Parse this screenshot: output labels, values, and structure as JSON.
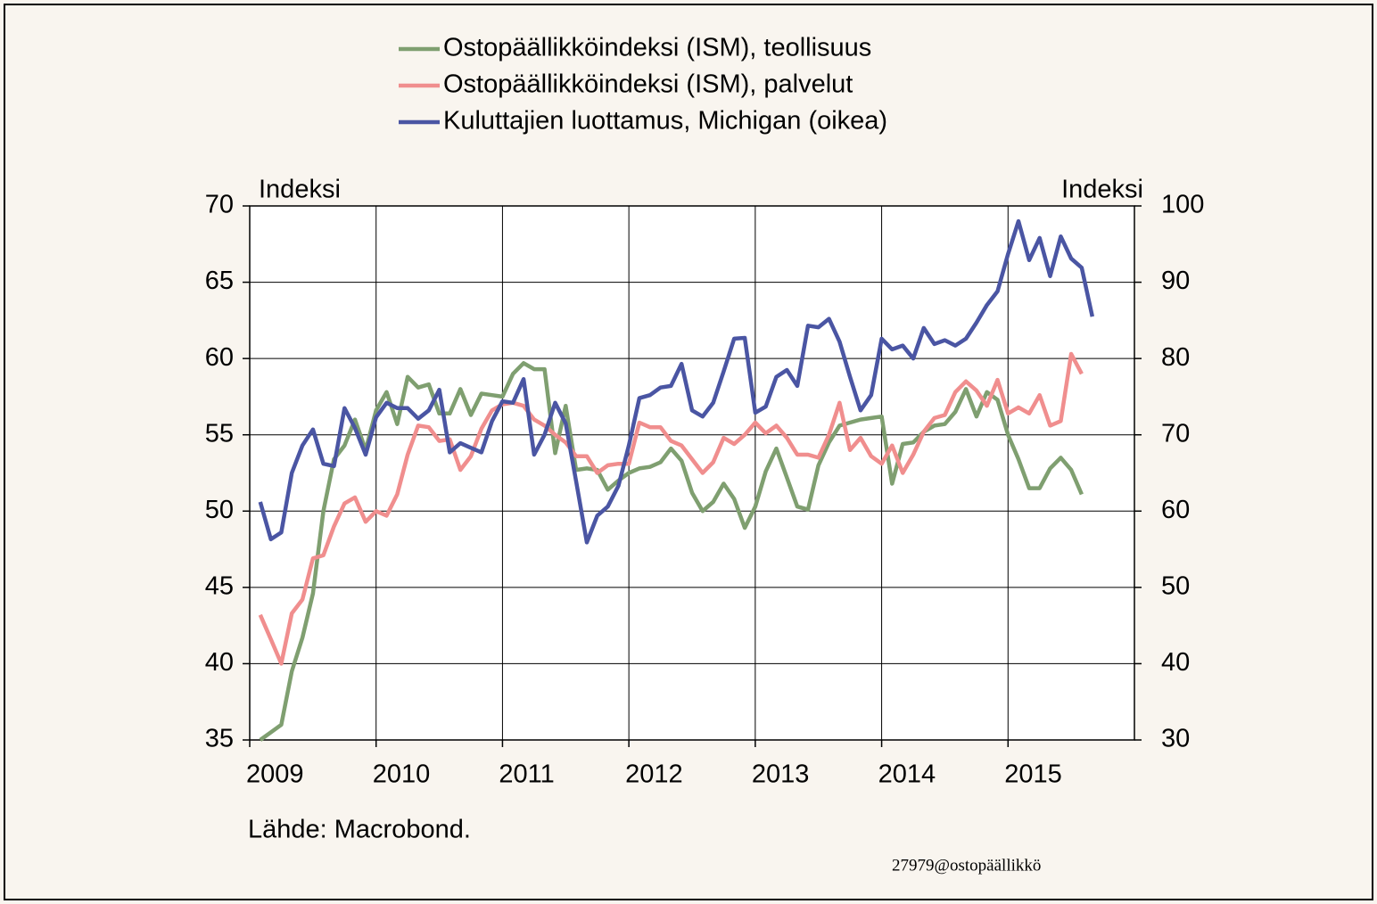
{
  "chart_data": {
    "type": "line",
    "y_label": "Indeksi",
    "y2_label": "Indeksi",
    "source": "Lähde: Macrobond.",
    "watermark": "27979@ostopäällikkö",
    "x": [
      2009.083,
      2009.167,
      2009.25,
      2009.333,
      2009.417,
      2009.5,
      2009.583,
      2009.667,
      2009.75,
      2009.833,
      2009.917,
      2010,
      2010.083,
      2010.167,
      2010.25,
      2010.333,
      2010.417,
      2010.5,
      2010.583,
      2010.667,
      2010.75,
      2010.833,
      2010.917,
      2011,
      2011.083,
      2011.167,
      2011.25,
      2011.333,
      2011.417,
      2011.5,
      2011.583,
      2011.667,
      2011.75,
      2011.833,
      2011.917,
      2012,
      2012.083,
      2012.167,
      2012.25,
      2012.333,
      2012.417,
      2012.5,
      2012.583,
      2012.667,
      2012.75,
      2012.833,
      2012.917,
      2013,
      2013.083,
      2013.167,
      2013.25,
      2013.333,
      2013.417,
      2013.5,
      2013.583,
      2013.667,
      2013.75,
      2013.833,
      2013.917,
      2014,
      2014.083,
      2014.167,
      2014.25,
      2014.333,
      2014.417,
      2014.5,
      2014.583,
      2014.667,
      2014.75,
      2014.833,
      2014.917,
      2015,
      2015.083,
      2015.167,
      2015.25,
      2015.333,
      2015.417,
      2015.5,
      2015.583,
      2015.667
    ],
    "series": [
      {
        "name": "Ostopäällikköindeksi (ISM), teollisuus",
        "color": "#7f9f70",
        "axis": "y",
        "values": [
          35,
          35.5,
          36,
          39.5,
          41.7,
          44.6,
          50,
          53.4,
          54.3,
          56,
          54,
          56.6,
          57.8,
          55.7,
          58.8,
          58.1,
          58.3,
          56.4,
          56.4,
          58,
          56.3,
          57.7,
          57.6,
          57.5,
          59,
          59.7,
          59.3,
          59.3,
          53.8,
          56.9,
          52.7,
          52.8,
          52.7,
          51.4,
          52,
          52.5,
          52.8,
          52.9,
          53.2,
          54.1,
          53.3,
          51.2,
          50,
          50.6,
          51.8,
          50.8,
          48.9,
          50.3,
          52.6,
          54.1,
          52.2,
          50.3,
          50.1,
          53,
          54.5,
          55.6,
          55.8,
          56,
          56.1,
          56.2,
          51.8,
          54.4,
          54.5,
          55.2,
          55.6,
          55.7,
          56.5,
          58,
          56.2,
          57.8,
          57.3,
          55,
          53.4,
          51.5,
          51.5,
          52.8,
          53.5,
          52.7,
          51.1,
          null
        ]
      },
      {
        "name": "Ostopäällikköindeksi (ISM), palvelut",
        "color": "#f08e8e",
        "axis": "y",
        "values": [
          43.2,
          41.6,
          40,
          43.3,
          44.2,
          46.9,
          47.1,
          49,
          50.5,
          50.9,
          49.3,
          50,
          49.7,
          51.1,
          53.7,
          55.6,
          55.5,
          54.6,
          54.7,
          52.7,
          53.6,
          55.4,
          56.6,
          57,
          57.1,
          56.9,
          56,
          55.6,
          55,
          54.5,
          53.6,
          53.6,
          52.5,
          53,
          53.1,
          53.1,
          55.8,
          55.5,
          55.5,
          54.6,
          54.3,
          53.4,
          52.5,
          53.2,
          54.8,
          54.4,
          55,
          55.8,
          55.1,
          55.6,
          54.8,
          53.7,
          53.7,
          53.5,
          55,
          57.1,
          54,
          54.8,
          53.6,
          53.1,
          54.3,
          52.5,
          53.7,
          55.2,
          56.1,
          56.3,
          57.8,
          58.5,
          57.9,
          56.9,
          58.6,
          56.4,
          56.8,
          56.4,
          57.6,
          55.6,
          55.9,
          60.3,
          59,
          null
        ]
      },
      {
        "name": "Kuluttajien luottamus, Michigan (oikea)",
        "color": "#4a55a3",
        "axis": "y2",
        "values": [
          61.2,
          56.3,
          57.2,
          65,
          68.6,
          70.7,
          66.2,
          65.9,
          73.5,
          70.9,
          67.4,
          72.3,
          74.2,
          73.5,
          73.5,
          72.1,
          73.2,
          75.9,
          67.7,
          68.9,
          68.3,
          67.7,
          71.8,
          74.4,
          74.2,
          77.3,
          67.4,
          70,
          74.2,
          71.5,
          63.9,
          55.9,
          59.4,
          60.6,
          63.3,
          68.6,
          74.8,
          75.2,
          76.2,
          76.4,
          79.3,
          73.2,
          72.4,
          74.2,
          78.3,
          82.6,
          82.7,
          72.9,
          73.7,
          77.6,
          78.5,
          76.4,
          84.3,
          84.1,
          85.2,
          82.2,
          77.6,
          73.2,
          75.2,
          82.6,
          81.2,
          81.7,
          80,
          84,
          81.9,
          82.4,
          81.7,
          82.6,
          84.7,
          87,
          88.8,
          93.7,
          98,
          92.9,
          95.8,
          90.8,
          96,
          93.1,
          91.9,
          85.5
        ]
      }
    ],
    "xlim": [
      2009,
      2016
    ],
    "xticks": [
      2009,
      2010,
      2011,
      2012,
      2013,
      2014,
      2015
    ],
    "ylim": [
      35,
      70
    ],
    "yticks": [
      35,
      40,
      45,
      50,
      55,
      60,
      65,
      70
    ],
    "y2lim": [
      30,
      100
    ],
    "y2ticks": [
      30,
      40,
      50,
      60,
      70,
      80,
      90,
      100
    ],
    "grid": true
  }
}
